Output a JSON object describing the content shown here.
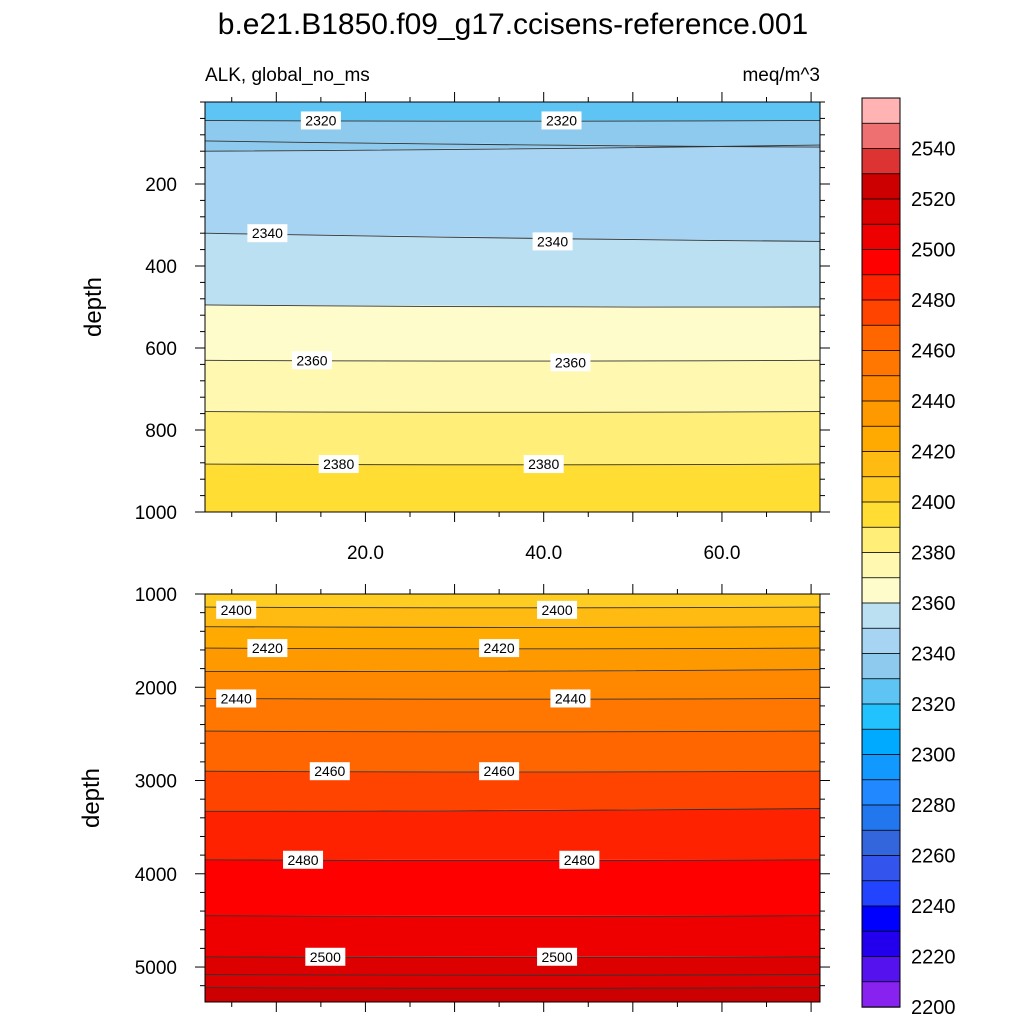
{
  "title": "b.e21.B1850.f09_g17.ccisens-reference.001",
  "variable_label": "ALK, global_no_ms",
  "units_label": "meq/m^3",
  "chart_data": [
    {
      "type": "heatmap",
      "subplot": "upper",
      "ylabel": "depth",
      "xlim": [
        2,
        71
      ],
      "ylim": [
        1000,
        0
      ],
      "x_ticks": [
        20,
        40,
        60
      ],
      "x_tick_labels": [
        "20.0",
        "40.0",
        "60.0"
      ],
      "y_ticks": [
        200,
        400,
        600,
        800,
        1000
      ],
      "y_tick_labels": [
        "200",
        "400",
        "600",
        "800",
        "1000"
      ],
      "contour_levels": [
        {
          "value": 2320,
          "depth_left": 45,
          "depth_right": 45
        },
        {
          "value": 2325,
          "depth_left": 95,
          "depth_right": 110
        },
        {
          "value": 2330,
          "depth_left": 120,
          "depth_right": 105
        },
        {
          "value": 2340,
          "depth_left": 320,
          "depth_right": 340
        },
        {
          "value": 2350,
          "depth_left": 495,
          "depth_right": 500
        },
        {
          "value": 2360,
          "depth_left": 630,
          "depth_right": 630
        },
        {
          "value": 2370,
          "depth_left": 755,
          "depth_right": 755
        },
        {
          "value": 2380,
          "depth_left": 883,
          "depth_right": 883
        }
      ],
      "contour_labels": [
        {
          "text": "2320",
          "x": 15,
          "depth": 45
        },
        {
          "text": "2320",
          "x": 42,
          "depth": 45
        },
        {
          "text": "2340",
          "x": 9,
          "depth": 320
        },
        {
          "text": "2340",
          "x": 41,
          "depth": 340
        },
        {
          "text": "2360",
          "x": 14,
          "depth": 630
        },
        {
          "text": "2360",
          "x": 43,
          "depth": 635
        },
        {
          "text": "2380",
          "x": 17,
          "depth": 883
        },
        {
          "text": "2380",
          "x": 40,
          "depth": 883
        }
      ]
    },
    {
      "type": "heatmap",
      "subplot": "lower",
      "ylabel": "depth",
      "xlim": [
        2,
        71
      ],
      "ylim": [
        5375,
        1000
      ],
      "y_ticks": [
        1000,
        2000,
        3000,
        4000,
        5000
      ],
      "y_tick_labels": [
        "1000",
        "2000",
        "3000",
        "4000",
        "5000"
      ],
      "contour_levels": [
        {
          "value": 2400,
          "depth_left": 1140,
          "depth_right": 1140
        },
        {
          "value": 2410,
          "depth_left": 1350,
          "depth_right": 1350
        },
        {
          "value": 2420,
          "depth_left": 1580,
          "depth_right": 1580
        },
        {
          "value": 2430,
          "depth_left": 1830,
          "depth_right": 1810
        },
        {
          "value": 2440,
          "depth_left": 2120,
          "depth_right": 2120
        },
        {
          "value": 2450,
          "depth_left": 2470,
          "depth_right": 2470
        },
        {
          "value": 2460,
          "depth_left": 2900,
          "depth_right": 2900
        },
        {
          "value": 2470,
          "depth_left": 3330,
          "depth_right": 3300
        },
        {
          "value": 2480,
          "depth_left": 3850,
          "depth_right": 3850
        },
        {
          "value": 2490,
          "depth_left": 4450,
          "depth_right": 4450
        },
        {
          "value": 2500,
          "depth_left": 4890,
          "depth_right": 4890
        },
        {
          "value": 2505,
          "depth_left": 5080,
          "depth_right": 5080
        },
        {
          "value": 2510,
          "depth_left": 5220,
          "depth_right": 5220
        }
      ],
      "contour_labels": [
        {
          "text": "2400",
          "x": 5.5,
          "depth": 1170
        },
        {
          "text": "2400",
          "x": 41.5,
          "depth": 1170
        },
        {
          "text": "2420",
          "x": 9,
          "depth": 1580
        },
        {
          "text": "2420",
          "x": 35,
          "depth": 1580
        },
        {
          "text": "2440",
          "x": 5.5,
          "depth": 2120
        },
        {
          "text": "2440",
          "x": 43,
          "depth": 2120
        },
        {
          "text": "2460",
          "x": 16,
          "depth": 2900
        },
        {
          "text": "2460",
          "x": 35,
          "depth": 2900
        },
        {
          "text": "2480",
          "x": 13,
          "depth": 3850
        },
        {
          "text": "2480",
          "x": 44,
          "depth": 3850
        },
        {
          "text": "2500",
          "x": 15.5,
          "depth": 4890
        },
        {
          "text": "2500",
          "x": 41.5,
          "depth": 4890
        }
      ]
    }
  ],
  "colorbar": {
    "min": 2190,
    "max": 2560,
    "step": 10,
    "labels": [
      "2540",
      "2520",
      "2500",
      "2480",
      "2460",
      "2440",
      "2420",
      "2400",
      "2380",
      "2360",
      "2340",
      "2320",
      "2300",
      "2280",
      "2260",
      "2240",
      "2220",
      "2200"
    ],
    "colors": [
      "#ffb3b3",
      "#ee7070",
      "#dd3333",
      "#cc0000",
      "#dd0000",
      "#ee0000",
      "#ff0000",
      "#ff2200",
      "#ff4400",
      "#ff6600",
      "#ff7700",
      "#ff8800",
      "#ff9900",
      "#ffaa00",
      "#ffbb11",
      "#ffcc22",
      "#ffdd33",
      "#ffee77",
      "#fff8b0",
      "#fffccc",
      "#bbe0f2",
      "#a6d4f2",
      "#8ecaed",
      "#5ec4f4",
      "#22c2ff",
      "#00aaff",
      "#1199ff",
      "#2288ff",
      "#2277ee",
      "#3366dd",
      "#3355ee",
      "#2244ff",
      "#0000ff",
      "#2200ee",
      "#5511ee",
      "#8822ee"
    ]
  }
}
